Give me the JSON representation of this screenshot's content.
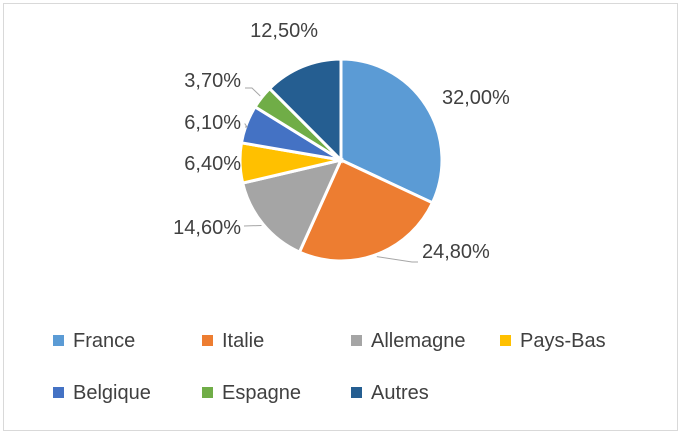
{
  "chart_data": {
    "type": "pie",
    "title": "",
    "categories": [
      "France",
      "Italie",
      "Allemagne",
      "Pays-Bas",
      "Belgique",
      "Espagne",
      "Autres"
    ],
    "values": [
      32.0,
      24.8,
      14.6,
      6.4,
      6.1,
      3.7,
      12.5
    ],
    "value_labels": [
      "32,00%",
      "24,80%",
      "14,60%",
      "6,40%",
      "6,10%",
      "3,70%",
      "12,50%"
    ],
    "colors": [
      "#5b9bd5",
      "#ed7d31",
      "#a5a5a5",
      "#ffc000",
      "#4472c4",
      "#70ad47",
      "#255e91"
    ],
    "legend_position": "bottom",
    "start_angle": "12 o'clock, clockwise"
  }
}
